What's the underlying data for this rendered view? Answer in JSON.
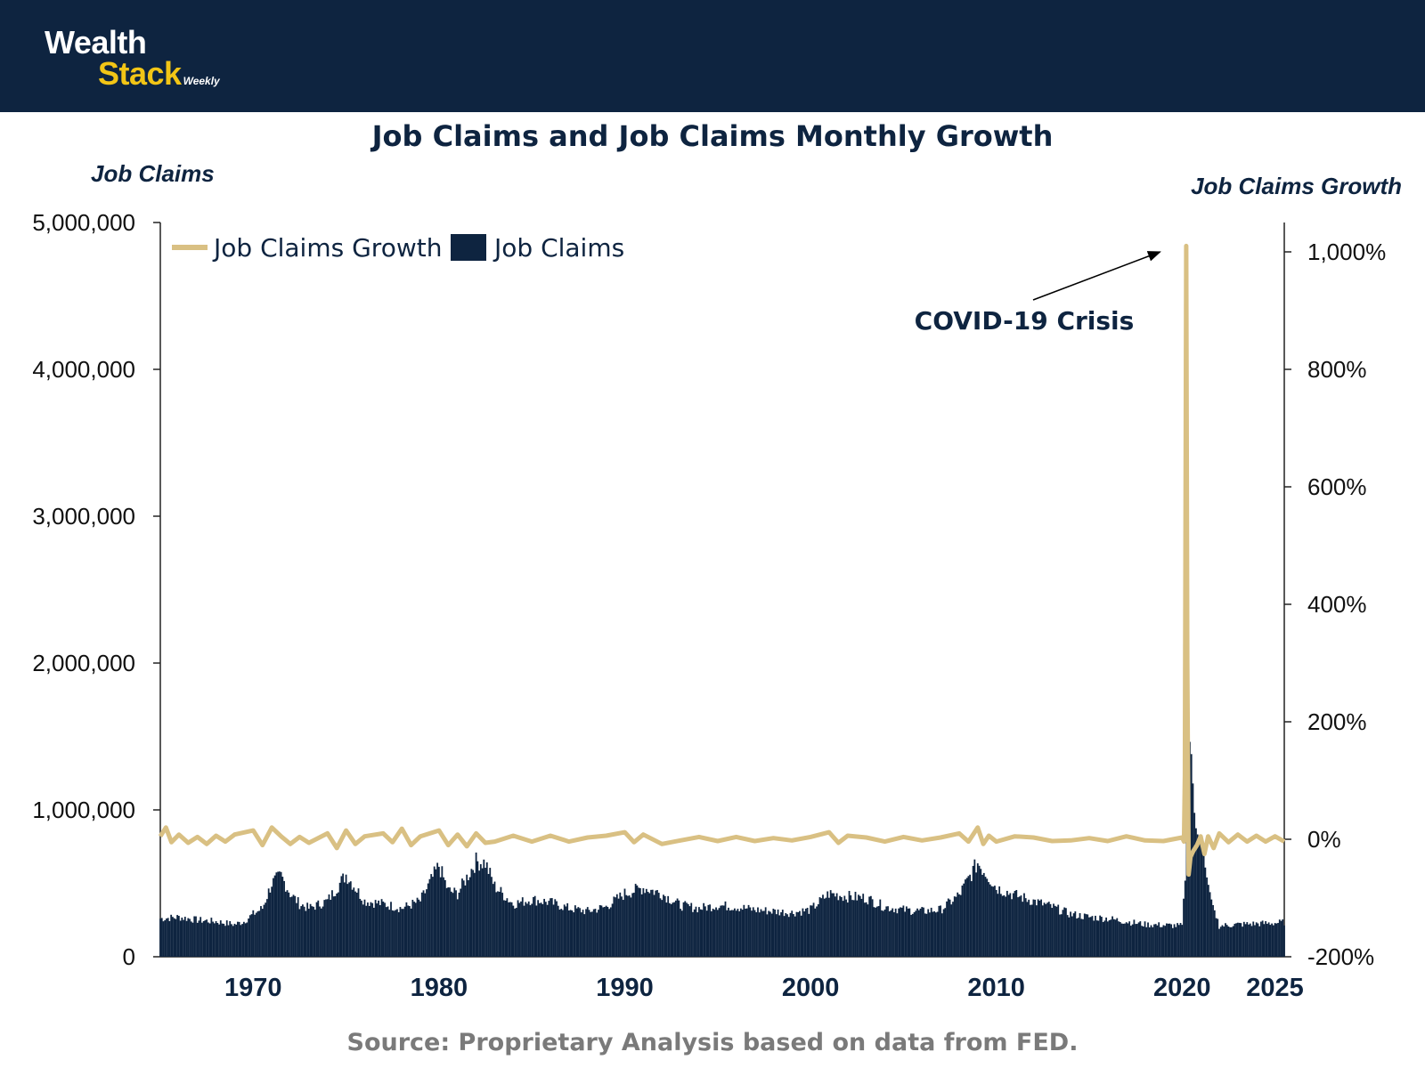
{
  "brand": {
    "name_line1": "Wealth",
    "name_line2": "Stack",
    "tagline": "Weekly"
  },
  "colors": {
    "header_bg": "#0e2440",
    "accent_yellow": "#f2c516",
    "bars": "#0e2440",
    "growth_line": "#d9c083",
    "axis_text": "#0e2440"
  },
  "chart_data": {
    "type": "bar+line",
    "title": "Job Claims and Job Claims Monthly Growth",
    "y_left_label": "Job Claims",
    "y_right_label": "Job Claims Growth",
    "y_left_ticks": [
      "0",
      "1,000,000",
      "2,000,000",
      "3,000,000",
      "4,000,000",
      "5,000,000"
    ],
    "y_left_range": [
      0,
      5000000
    ],
    "y_right_ticks": [
      "-200%",
      "0%",
      "200%",
      "400%",
      "600%",
      "800%",
      "1,000%"
    ],
    "y_right_range": [
      -200,
      1050
    ],
    "x_ticks": [
      "1970",
      "1980",
      "1990",
      "2000",
      "2010",
      "2020",
      "2025"
    ],
    "x_range": [
      1965,
      2025.5
    ],
    "legend": [
      "Job Claims Growth",
      "Job Claims"
    ],
    "annotation": {
      "text": "COVID-19 Crisis",
      "target_x": 2020.25,
      "target_value_pct": 1000
    },
    "series": [
      {
        "name": "Job Claims",
        "kind": "bar",
        "points": [
          [
            1965,
            260000
          ],
          [
            1966,
            270000
          ],
          [
            1967,
            250000
          ],
          [
            1968,
            240000
          ],
          [
            1969,
            220000
          ],
          [
            1969.5,
            240000
          ],
          [
            1970,
            290000
          ],
          [
            1970.5,
            330000
          ],
          [
            1971,
            500000
          ],
          [
            1971.5,
            550000
          ],
          [
            1972,
            430000
          ],
          [
            1972.5,
            360000
          ],
          [
            1973,
            330000
          ],
          [
            1974,
            380000
          ],
          [
            1975,
            560000
          ],
          [
            1975.5,
            470000
          ],
          [
            1976,
            380000
          ],
          [
            1977,
            360000
          ],
          [
            1978,
            330000
          ],
          [
            1979,
            380000
          ],
          [
            1980,
            620000
          ],
          [
            1980.5,
            450000
          ],
          [
            1981,
            430000
          ],
          [
            1982,
            650000
          ],
          [
            1982.5,
            640000
          ],
          [
            1983,
            480000
          ],
          [
            1984,
            360000
          ],
          [
            1985,
            390000
          ],
          [
            1986,
            370000
          ],
          [
            1987,
            330000
          ],
          [
            1988,
            310000
          ],
          [
            1989,
            340000
          ],
          [
            1990,
            430000
          ],
          [
            1991,
            470000
          ],
          [
            1992,
            430000
          ],
          [
            1993,
            350000
          ],
          [
            1994,
            330000
          ],
          [
            1995,
            350000
          ],
          [
            1996,
            340000
          ],
          [
            1997,
            320000
          ],
          [
            1998,
            310000
          ],
          [
            1999,
            300000
          ],
          [
            2000,
            320000
          ],
          [
            2001,
            430000
          ],
          [
            2002,
            410000
          ],
          [
            2003,
            400000
          ],
          [
            2004,
            340000
          ],
          [
            2005,
            320000
          ],
          [
            2006,
            310000
          ],
          [
            2007,
            320000
          ],
          [
            2008,
            420000
          ],
          [
            2009,
            640000
          ],
          [
            2009.5,
            560000
          ],
          [
            2010,
            470000
          ],
          [
            2011,
            420000
          ],
          [
            2012,
            380000
          ],
          [
            2013,
            340000
          ],
          [
            2014,
            290000
          ],
          [
            2015,
            270000
          ],
          [
            2016,
            260000
          ],
          [
            2017,
            240000
          ],
          [
            2018,
            220000
          ],
          [
            2019,
            215000
          ],
          [
            2020,
            210000
          ],
          [
            2020.2,
            580000
          ],
          [
            2020.3,
            2170000
          ],
          [
            2020.4,
            1480000
          ],
          [
            2020.5,
            1380000
          ],
          [
            2020.7,
            900000
          ],
          [
            2020.9,
            800000
          ],
          [
            2021.1,
            750000
          ],
          [
            2021.3,
            560000
          ],
          [
            2021.6,
            380000
          ],
          [
            2022,
            210000
          ],
          [
            2023,
            220000
          ],
          [
            2024,
            225000
          ],
          [
            2025,
            230000
          ],
          [
            2025.5,
            235000
          ]
        ]
      },
      {
        "name": "Job Claims Growth",
        "kind": "line",
        "points": [
          [
            1965,
            5
          ],
          [
            1965.3,
            20
          ],
          [
            1965.6,
            -5
          ],
          [
            1966,
            8
          ],
          [
            1966.5,
            -6
          ],
          [
            1967,
            4
          ],
          [
            1967.5,
            -8
          ],
          [
            1968,
            6
          ],
          [
            1968.5,
            -4
          ],
          [
            1969,
            8
          ],
          [
            1970,
            15
          ],
          [
            1970.5,
            -10
          ],
          [
            1971,
            20
          ],
          [
            1971.5,
            5
          ],
          [
            1972,
            -8
          ],
          [
            1972.5,
            4
          ],
          [
            1973,
            -6
          ],
          [
            1974,
            10
          ],
          [
            1974.5,
            -15
          ],
          [
            1975,
            15
          ],
          [
            1975.5,
            -8
          ],
          [
            1976,
            5
          ],
          [
            1977,
            10
          ],
          [
            1977.5,
            -5
          ],
          [
            1978,
            18
          ],
          [
            1978.5,
            -10
          ],
          [
            1979,
            5
          ],
          [
            1980,
            15
          ],
          [
            1980.5,
            -10
          ],
          [
            1981,
            8
          ],
          [
            1981.5,
            -12
          ],
          [
            1982,
            10
          ],
          [
            1982.5,
            -6
          ],
          [
            1983,
            -4
          ],
          [
            1984,
            6
          ],
          [
            1985,
            -4
          ],
          [
            1986,
            6
          ],
          [
            1987,
            -4
          ],
          [
            1988,
            3
          ],
          [
            1989,
            6
          ],
          [
            1990,
            12
          ],
          [
            1990.5,
            -5
          ],
          [
            1991,
            8
          ],
          [
            1992,
            -8
          ],
          [
            1993,
            -2
          ],
          [
            1994,
            4
          ],
          [
            1995,
            -3
          ],
          [
            1996,
            4
          ],
          [
            1997,
            -3
          ],
          [
            1998,
            2
          ],
          [
            1999,
            -2
          ],
          [
            2000,
            4
          ],
          [
            2001,
            12
          ],
          [
            2001.5,
            -6
          ],
          [
            2002,
            6
          ],
          [
            2003,
            3
          ],
          [
            2004,
            -4
          ],
          [
            2005,
            4
          ],
          [
            2006,
            -2
          ],
          [
            2007,
            3
          ],
          [
            2008,
            10
          ],
          [
            2008.5,
            -4
          ],
          [
            2009,
            20
          ],
          [
            2009.3,
            -8
          ],
          [
            2009.6,
            6
          ],
          [
            2010,
            -4
          ],
          [
            2011,
            5
          ],
          [
            2012,
            3
          ],
          [
            2013,
            -3
          ],
          [
            2014,
            -2
          ],
          [
            2015,
            2
          ],
          [
            2016,
            -3
          ],
          [
            2017,
            5
          ],
          [
            2018,
            -2
          ],
          [
            2019,
            -3
          ],
          [
            2020,
            3
          ],
          [
            2020.1,
            -4
          ],
          [
            2020.15,
            110
          ],
          [
            2020.22,
            1010
          ],
          [
            2020.28,
            300
          ],
          [
            2020.35,
            -60
          ],
          [
            2020.45,
            -30
          ],
          [
            2020.6,
            -20
          ],
          [
            2020.8,
            -10
          ],
          [
            2021,
            5
          ],
          [
            2021.2,
            -25
          ],
          [
            2021.4,
            5
          ],
          [
            2021.7,
            -15
          ],
          [
            2022,
            10
          ],
          [
            2022.5,
            -5
          ],
          [
            2023,
            8
          ],
          [
            2023.5,
            -4
          ],
          [
            2024,
            6
          ],
          [
            2024.5,
            -4
          ],
          [
            2025,
            5
          ],
          [
            2025.5,
            -4
          ]
        ]
      }
    ]
  },
  "source": "Source: Proprietary Analysis based on data from FED."
}
